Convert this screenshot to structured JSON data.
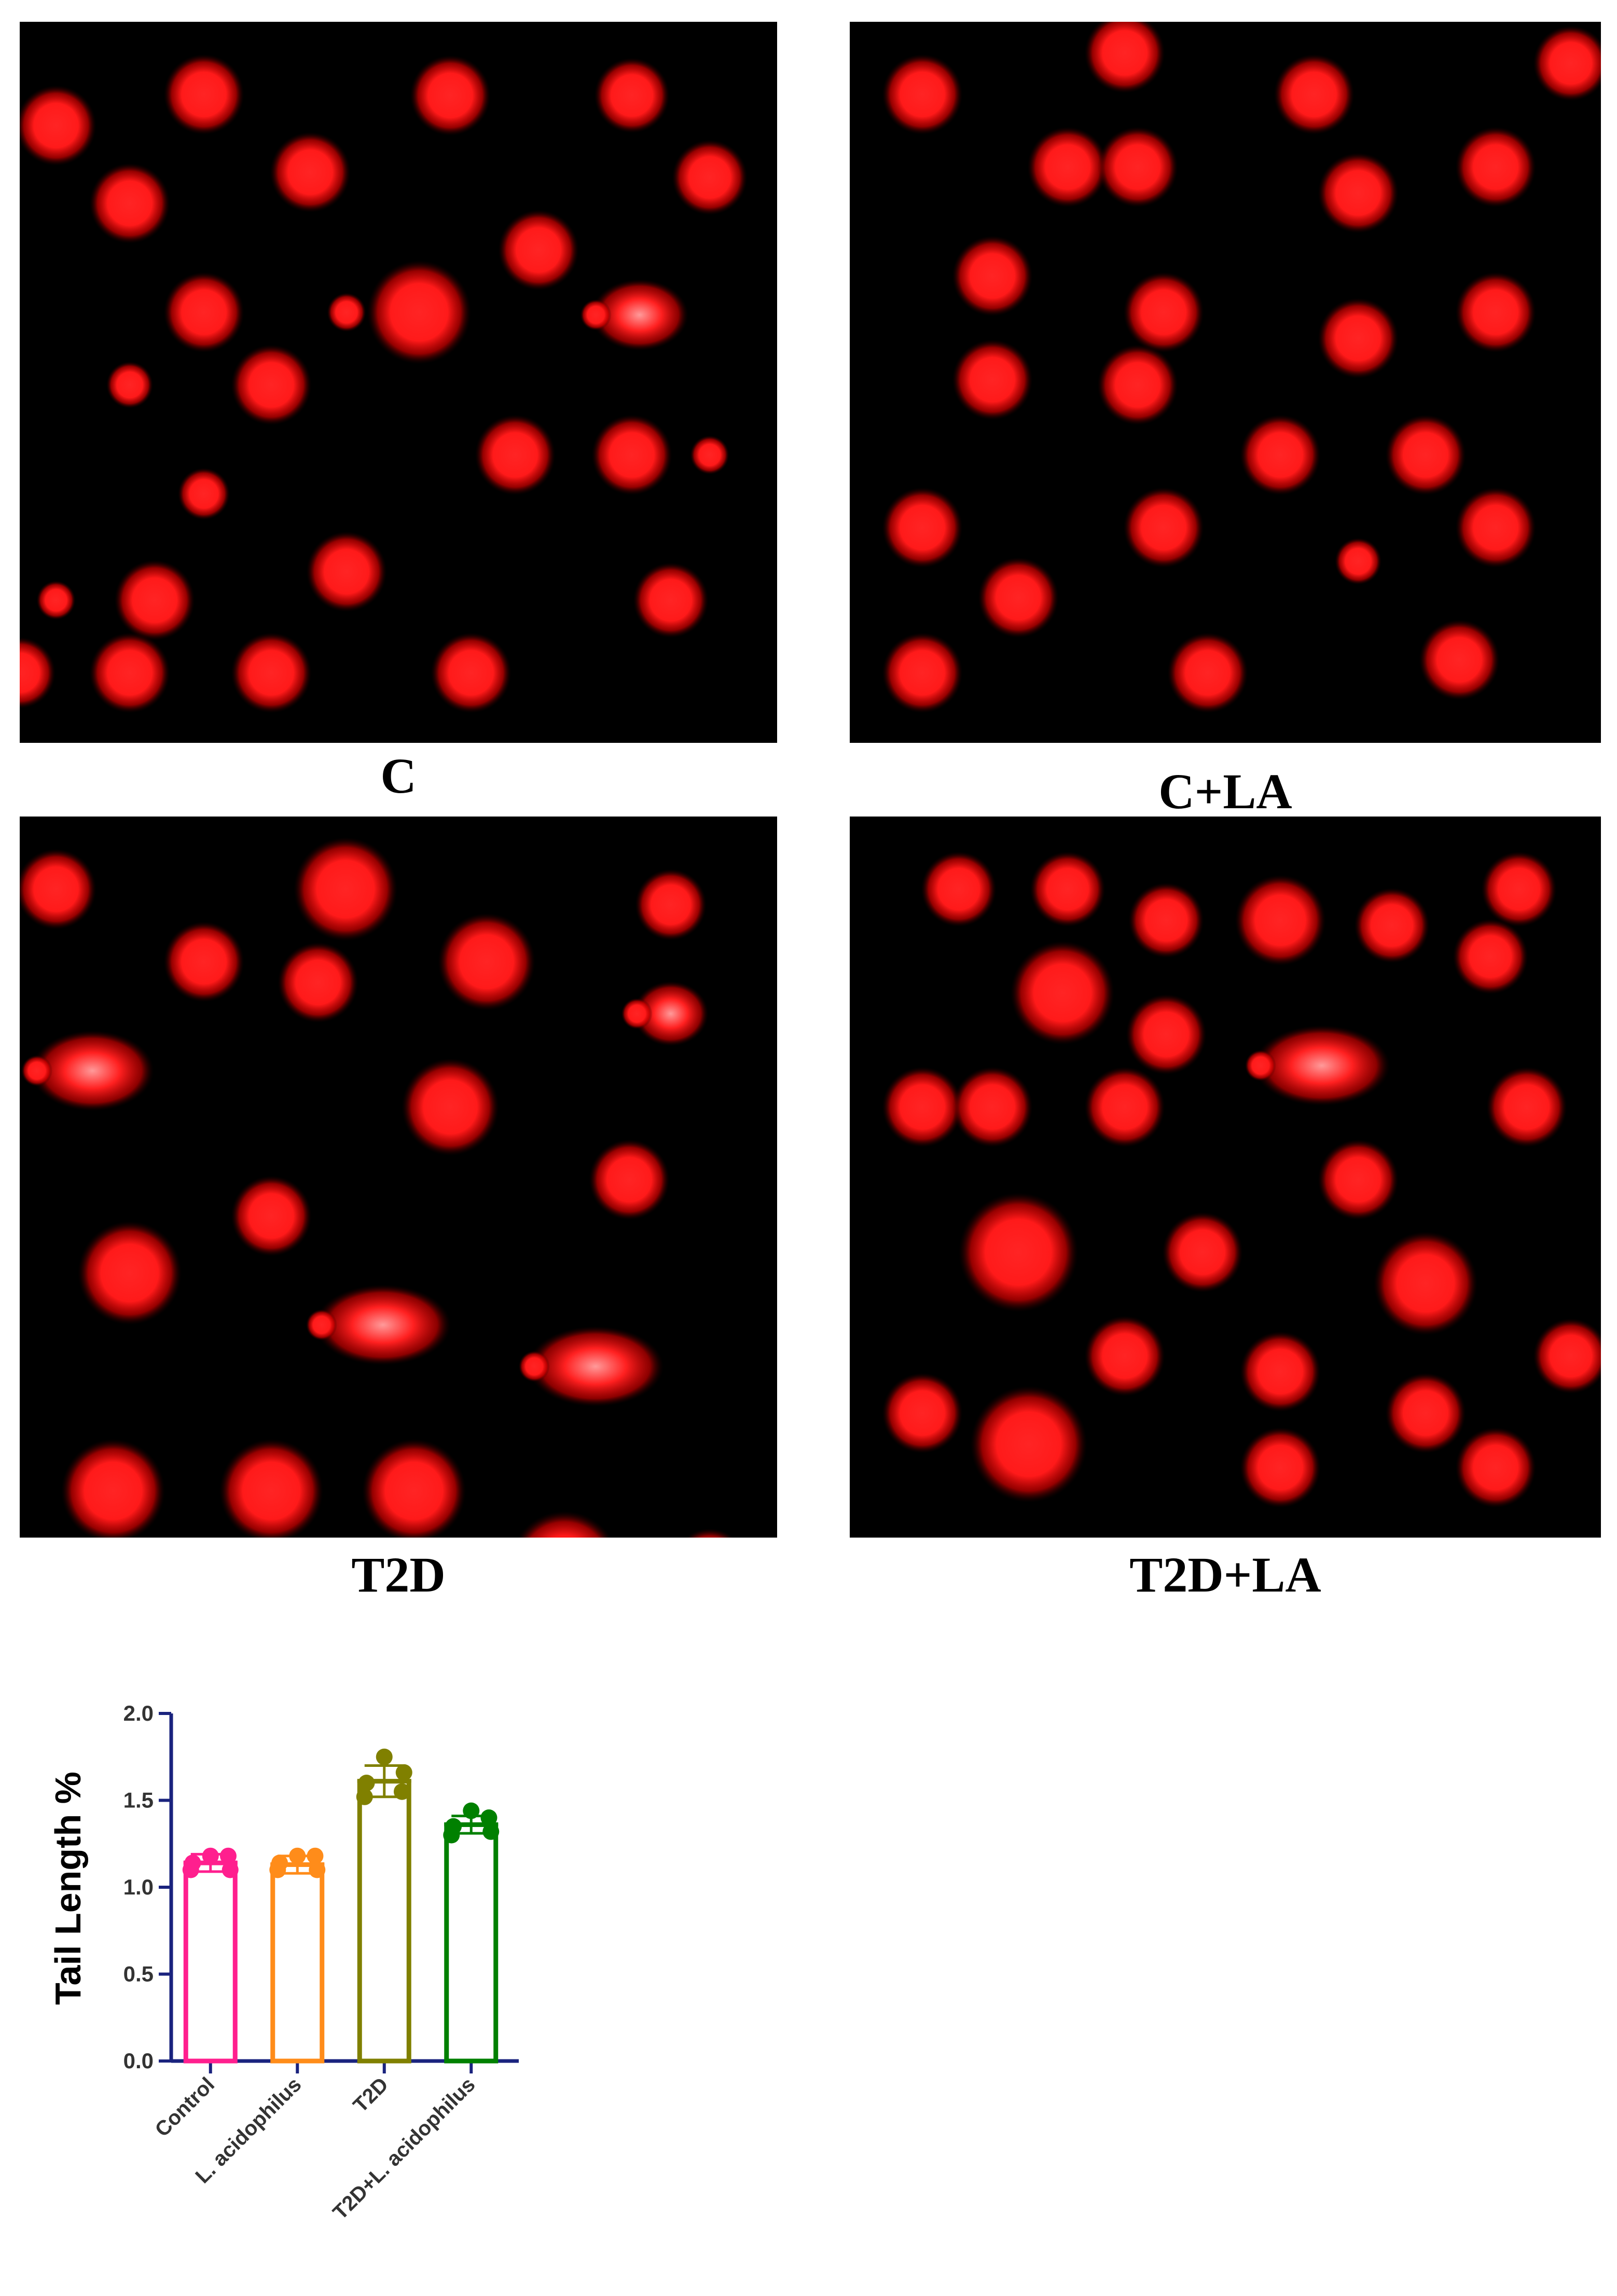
{
  "panels": [
    {
      "label": "C"
    },
    {
      "label": "C+LA"
    },
    {
      "label": "T2D"
    },
    {
      "label": "T2D+LA"
    }
  ],
  "colors": {
    "comet": "#ff1a1a",
    "panel_bg": "#000000",
    "axis": "#1a237e"
  },
  "chart_data": {
    "type": "bar",
    "categories": [
      "Control",
      "L. acidophilus",
      "T2D",
      "T2D+L. acidophilus"
    ],
    "values": [
      1.14,
      1.13,
      1.61,
      1.36
    ],
    "errors": [
      0.05,
      0.05,
      0.09,
      0.05
    ],
    "points": [
      [
        1.18,
        1.1,
        1.14,
        1.18,
        1.1
      ],
      [
        1.18,
        1.1,
        1.14,
        1.18,
        1.1
      ],
      [
        1.75,
        1.52,
        1.6,
        1.55,
        1.66
      ],
      [
        1.44,
        1.3,
        1.35,
        1.4,
        1.32
      ]
    ],
    "colors": [
      "#ff1f8e",
      "#ff8c1a",
      "#808000",
      "#008000"
    ],
    "ylabel": "Tail Length %",
    "ylim": [
      0,
      2.0
    ],
    "yticks": [
      "0.0",
      "0.5",
      "1.0",
      "1.5",
      "2.0"
    ],
    "grid": false
  }
}
